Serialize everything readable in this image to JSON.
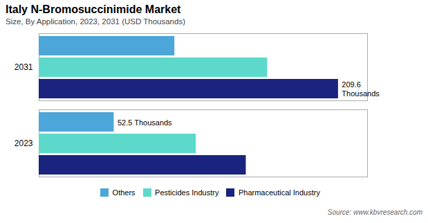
{
  "chart_data": {
    "type": "bar",
    "orientation": "horizontal",
    "title": "Italy N-Bromosuccinimide Market",
    "subtitle": "Size, By Application, 2023, 2031 (USD Thousands)",
    "source": "Source: www.kbvresearch.com",
    "categories": [
      "2031",
      "2023"
    ],
    "series": [
      {
        "name": "Others",
        "color": "#4da6d9",
        "values": [
          95.0,
          52.5
        ]
      },
      {
        "name": "Pesticides Industry",
        "color": "#5dd9cc",
        "values": [
          160.0,
          110.0
        ]
      },
      {
        "name": "Pharmaceutical Industry",
        "color": "#1a237e",
        "values": [
          209.6,
          145.0
        ]
      }
    ],
    "xlim": [
      0,
      230
    ],
    "xticks": [],
    "tick_labels": "y",
    "grid": false,
    "legend": "bottom",
    "annotations": [
      {
        "text": "52.5 Thousands",
        "category": "2023",
        "series": "Others"
      },
      {
        "text": "209.6\nThousands",
        "category": "2031",
        "series": "Pharmaceutical Industry"
      }
    ]
  }
}
